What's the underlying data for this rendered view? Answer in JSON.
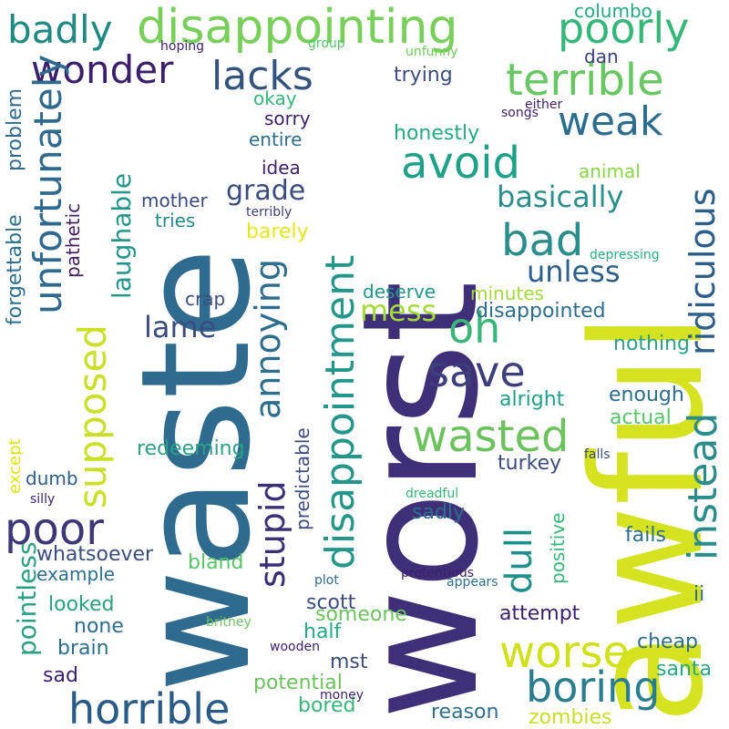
{
  "words": [
    {
      "text": "waste",
      "color": "#2e6b8f"
    },
    {
      "text": "worst",
      "color": "#3f2f78"
    },
    {
      "text": "awful",
      "color": "#d5e21f"
    },
    {
      "text": "disappointing",
      "color": "#78cf5a"
    },
    {
      "text": "poorly",
      "color": "#35b779"
    },
    {
      "text": "badly",
      "color": "#1f8a84"
    },
    {
      "text": "wonder",
      "color": "#3b1f6b"
    },
    {
      "text": "lacks",
      "color": "#33527e"
    },
    {
      "text": "terrible",
      "color": "#67c760"
    },
    {
      "text": "weak",
      "color": "#2d6e8e"
    },
    {
      "text": "ridiculous",
      "color": "#2c5e8b"
    },
    {
      "text": "unfortunately",
      "color": "#2f6a8e"
    },
    {
      "text": "avoid",
      "color": "#1fa088"
    },
    {
      "text": "supposed",
      "color": "#c9df28"
    },
    {
      "text": "stupid",
      "color": "#3b2e77"
    },
    {
      "text": "annoying",
      "color": "#2d6e8e"
    },
    {
      "text": "disappointment",
      "color": "#23978a"
    },
    {
      "text": "grade",
      "color": "#3b4d7f"
    },
    {
      "text": "basically",
      "color": "#2b8d8c"
    },
    {
      "text": "bad",
      "color": "#2b8c8c"
    },
    {
      "text": "instead",
      "color": "#2b8c8c"
    },
    {
      "text": "unless",
      "color": "#2c5f8b"
    },
    {
      "text": "oh",
      "color": "#3ab679"
    },
    {
      "text": "laughable",
      "color": "#23958b"
    },
    {
      "text": "mess",
      "color": "#a3d93a"
    },
    {
      "text": "lame",
      "color": "#3a4c80"
    },
    {
      "text": "save",
      "color": "#3d3f7c"
    },
    {
      "text": "wasted",
      "color": "#6cc35d"
    },
    {
      "text": "poor",
      "color": "#3d3778"
    },
    {
      "text": "dull",
      "color": "#1f8f8b"
    },
    {
      "text": "worse",
      "color": "#d0e11c"
    },
    {
      "text": "boring",
      "color": "#2a7d8e"
    },
    {
      "text": "horrible",
      "color": "#2a5b87"
    },
    {
      "text": "pointless",
      "color": "#2aa183"
    },
    {
      "text": "forgettable",
      "color": "#2d6f8e"
    },
    {
      "text": "problem",
      "color": "#2f6a8e"
    },
    {
      "text": "pathetic",
      "color": "#451d64"
    },
    {
      "text": "mother",
      "color": "#3a4b80"
    },
    {
      "text": "tries",
      "color": "#238a8c"
    },
    {
      "text": "terribly",
      "color": "#3d3f7c"
    },
    {
      "text": "barely",
      "color": "#e7e619"
    },
    {
      "text": "depressing",
      "color": "#2bb07f"
    },
    {
      "text": "animal",
      "color": "#8bd646"
    },
    {
      "text": "honestly",
      "color": "#25a984"
    },
    {
      "text": "okay",
      "color": "#35b779"
    },
    {
      "text": "sorry",
      "color": "#3b1f6b"
    },
    {
      "text": "entire",
      "color": "#2d6e8e"
    },
    {
      "text": "idea",
      "color": "#3b1f6b"
    },
    {
      "text": "trying",
      "color": "#3b4d7f"
    },
    {
      "text": "columbo",
      "color": "#25a984"
    },
    {
      "text": "dan",
      "color": "#3b3f7c"
    },
    {
      "text": "group",
      "color": "#56c567"
    },
    {
      "text": "unfunny",
      "color": "#6ecd5a"
    },
    {
      "text": "hoping",
      "color": "#3b1f6b"
    },
    {
      "text": "songs",
      "color": "#3b1f6b"
    },
    {
      "text": "either",
      "color": "#3b1f6b"
    },
    {
      "text": "crap",
      "color": "#3b4d7f"
    },
    {
      "text": "deserve",
      "color": "#23958b"
    },
    {
      "text": "minutes",
      "color": "#a3d93a"
    },
    {
      "text": "disappointed",
      "color": "#2d6e8e"
    },
    {
      "text": "nothing",
      "color": "#2aa183"
    },
    {
      "text": "alright",
      "color": "#1fa088"
    },
    {
      "text": "enough",
      "color": "#2d6e8e"
    },
    {
      "text": "actual",
      "color": "#56c567"
    },
    {
      "text": "predictable",
      "color": "#3b4d7f"
    },
    {
      "text": "redeeming",
      "color": "#2aa183"
    },
    {
      "text": "except",
      "color": "#e2e418"
    },
    {
      "text": "dumb",
      "color": "#2c5e8b"
    },
    {
      "text": "silly",
      "color": "#3b1f6b"
    },
    {
      "text": "dreadful",
      "color": "#35b779"
    },
    {
      "text": "sadly",
      "color": "#2d6e8e"
    },
    {
      "text": "turkey",
      "color": "#3b4d7f"
    },
    {
      "text": "falls",
      "color": "#3b4d7f"
    },
    {
      "text": "fails",
      "color": "#2d6e8e"
    },
    {
      "text": "positive",
      "color": "#35b779"
    },
    {
      "text": "whatsoever",
      "color": "#3b4d7f"
    },
    {
      "text": "bland",
      "color": "#56c567"
    },
    {
      "text": "example",
      "color": "#2d6e8e"
    },
    {
      "text": "plot",
      "color": "#2d6e8e"
    },
    {
      "text": "pretentious",
      "color": "#3b1f6b"
    },
    {
      "text": "appears",
      "color": "#2d6e8e"
    },
    {
      "text": "ii",
      "color": "#2d6e8e"
    },
    {
      "text": "attempt",
      "color": "#3b1f6b"
    },
    {
      "text": "scott",
      "color": "#3b4d7f"
    },
    {
      "text": "someone",
      "color": "#6cc35d"
    },
    {
      "text": "half",
      "color": "#25a984"
    },
    {
      "text": "looked",
      "color": "#2aa183"
    },
    {
      "text": "none",
      "color": "#2d6e8e"
    },
    {
      "text": "brain",
      "color": "#2d6e8e"
    },
    {
      "text": "britney",
      "color": "#6cc35d"
    },
    {
      "text": "wooden",
      "color": "#3b1f6b"
    },
    {
      "text": "cheap",
      "color": "#2d6e8e"
    },
    {
      "text": "santa",
      "color": "#25a984"
    },
    {
      "text": "mst",
      "color": "#3b4d7f"
    },
    {
      "text": "potential",
      "color": "#6cc35d"
    },
    {
      "text": "bored",
      "color": "#35b779"
    },
    {
      "text": "money",
      "color": "#3b1f6b"
    },
    {
      "text": "reason",
      "color": "#2d6e8e"
    },
    {
      "text": "zombies",
      "color": "#c9df28"
    },
    {
      "text": "sad",
      "color": "#3b1f6b"
    }
  ]
}
